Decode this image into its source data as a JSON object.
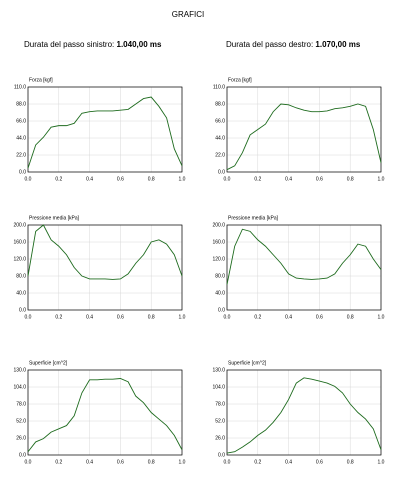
{
  "title": "GRAFICI",
  "durations": [
    {
      "label": "Durata del passo sinistro:",
      "value": "1.040,00 ms"
    },
    {
      "label": "Durata del passo destro:",
      "value": "1.070,00 ms"
    }
  ],
  "chart_data": [
    {
      "type": "line",
      "title": "Forza [kgf]",
      "color": "#1e6b1e",
      "grid": true,
      "x": [
        0,
        0.05,
        0.1,
        0.15,
        0.2,
        0.25,
        0.3,
        0.35,
        0.4,
        0.45,
        0.5,
        0.55,
        0.6,
        0.65,
        0.7,
        0.75,
        0.8,
        0.85,
        0.9,
        0.95,
        1
      ],
      "values": [
        5,
        35,
        45,
        58,
        60,
        60,
        63,
        76,
        78,
        79,
        79,
        79,
        80,
        81,
        88,
        95,
        97,
        85,
        70,
        30,
        8
      ],
      "xlim": [
        0,
        1
      ],
      "xticks": [
        {
          "value": 0,
          "label": "0.0"
        },
        0.2,
        0.4,
        0.6,
        0.8,
        {
          "value": 1,
          "label": "1.0"
        }
      ],
      "ylim": [
        0,
        110
      ],
      "yticks": [
        {
          "value": 0,
          "label": "0.0"
        },
        {
          "value": 22,
          "label": "22.0"
        },
        {
          "value": 44,
          "label": "44.0"
        },
        {
          "value": 66,
          "label": "66.0"
        },
        {
          "value": 88,
          "label": "88.0"
        },
        {
          "value": 110,
          "label": "110.0"
        }
      ]
    },
    {
      "type": "line",
      "title": "Forza [kgf]",
      "color": "#1e6b1e",
      "grid": true,
      "x": [
        0,
        0.05,
        0.1,
        0.15,
        0.2,
        0.25,
        0.3,
        0.35,
        0.4,
        0.45,
        0.5,
        0.55,
        0.6,
        0.65,
        0.7,
        0.75,
        0.8,
        0.85,
        0.9,
        0.95,
        1
      ],
      "values": [
        3,
        8,
        25,
        48,
        55,
        62,
        78,
        88,
        87,
        83,
        80,
        78,
        78,
        79,
        82,
        83,
        85,
        88,
        85,
        55,
        12
      ],
      "xlim": [
        0,
        1
      ],
      "xticks": [
        {
          "value": 0,
          "label": "0.0"
        },
        0.2,
        0.4,
        0.6,
        0.8,
        {
          "value": 1,
          "label": "1.0"
        }
      ],
      "ylim": [
        0,
        110
      ],
      "yticks": [
        {
          "value": 0,
          "label": "0.0"
        },
        {
          "value": 22,
          "label": "22.0"
        },
        {
          "value": 44,
          "label": "44.0"
        },
        {
          "value": 66,
          "label": "66.0"
        },
        {
          "value": 88,
          "label": "88.0"
        },
        {
          "value": 110,
          "label": "110.0"
        }
      ]
    },
    {
      "type": "line",
      "title": "Pressione media [kPa]",
      "color": "#1e6b1e",
      "grid": true,
      "x": [
        0,
        0.05,
        0.1,
        0.15,
        0.2,
        0.25,
        0.3,
        0.35,
        0.4,
        0.45,
        0.5,
        0.55,
        0.6,
        0.65,
        0.7,
        0.75,
        0.8,
        0.85,
        0.9,
        0.95,
        1
      ],
      "values": [
        80,
        185,
        200,
        165,
        150,
        130,
        100,
        80,
        73,
        73,
        73,
        72,
        73,
        85,
        110,
        130,
        160,
        165,
        155,
        130,
        80
      ],
      "xlim": [
        0,
        1
      ],
      "xticks": [
        {
          "value": 0,
          "label": "0.0"
        },
        0.2,
        0.4,
        0.6,
        0.8,
        {
          "value": 1,
          "label": "1.0"
        }
      ],
      "ylim": [
        0,
        200
      ],
      "yticks": [
        {
          "value": 0,
          "label": "0.0"
        },
        {
          "value": 40,
          "label": "40.0"
        },
        {
          "value": 80,
          "label": "80.0"
        },
        {
          "value": 120,
          "label": "120.0"
        },
        {
          "value": 160,
          "label": "160.0"
        },
        {
          "value": 200,
          "label": "200.0"
        }
      ]
    },
    {
      "type": "line",
      "title": "Pressione media [kPa]",
      "color": "#1e6b1e",
      "grid": true,
      "x": [
        0,
        0.05,
        0.1,
        0.15,
        0.2,
        0.25,
        0.3,
        0.35,
        0.4,
        0.45,
        0.5,
        0.55,
        0.6,
        0.65,
        0.7,
        0.75,
        0.8,
        0.85,
        0.9,
        0.95,
        1
      ],
      "values": [
        60,
        150,
        190,
        185,
        165,
        150,
        130,
        110,
        85,
        75,
        73,
        72,
        73,
        75,
        85,
        110,
        130,
        155,
        150,
        120,
        95
      ],
      "xlim": [
        0,
        1
      ],
      "xticks": [
        {
          "value": 0,
          "label": "0.0"
        },
        0.2,
        0.4,
        0.6,
        0.8,
        {
          "value": 1,
          "label": "1.0"
        }
      ],
      "ylim": [
        0,
        200
      ],
      "yticks": [
        {
          "value": 0,
          "label": "0.0"
        },
        {
          "value": 40,
          "label": "40.0"
        },
        {
          "value": 80,
          "label": "80.0"
        },
        {
          "value": 120,
          "label": "120.0"
        },
        {
          "value": 160,
          "label": "160.0"
        },
        {
          "value": 200,
          "label": "200.0"
        }
      ]
    },
    {
      "type": "line",
      "title": "Superficie [cm^2]",
      "color": "#1e6b1e",
      "grid": true,
      "x": [
        0,
        0.05,
        0.1,
        0.15,
        0.2,
        0.25,
        0.3,
        0.35,
        0.4,
        0.45,
        0.5,
        0.55,
        0.6,
        0.65,
        0.7,
        0.75,
        0.8,
        0.85,
        0.9,
        0.95,
        1
      ],
      "values": [
        5,
        20,
        25,
        35,
        40,
        45,
        60,
        95,
        115,
        115,
        116,
        116,
        117,
        112,
        90,
        80,
        65,
        55,
        45,
        30,
        8
      ],
      "xlim": [
        0,
        1
      ],
      "xticks": [
        {
          "value": 0,
          "label": "0.0"
        },
        0.2,
        0.4,
        0.6,
        0.8,
        {
          "value": 1,
          "label": "1.0"
        }
      ],
      "ylim": [
        0,
        130
      ],
      "yticks": [
        {
          "value": 0,
          "label": "0.0"
        },
        {
          "value": 26,
          "label": "26.0"
        },
        {
          "value": 52,
          "label": "52.0"
        },
        {
          "value": 78,
          "label": "78.0"
        },
        {
          "value": 104,
          "label": "104.0"
        },
        {
          "value": 130,
          "label": "130.0"
        }
      ]
    },
    {
      "type": "line",
      "title": "Superficie [cm^2]",
      "color": "#1e6b1e",
      "grid": true,
      "x": [
        0,
        0.05,
        0.1,
        0.15,
        0.2,
        0.25,
        0.3,
        0.35,
        0.4,
        0.45,
        0.5,
        0.55,
        0.6,
        0.65,
        0.7,
        0.75,
        0.8,
        0.85,
        0.9,
        0.95,
        1
      ],
      "values": [
        3,
        5,
        12,
        20,
        30,
        38,
        50,
        65,
        85,
        110,
        118,
        116,
        113,
        110,
        105,
        95,
        78,
        65,
        55,
        40,
        8
      ],
      "xlim": [
        0,
        1
      ],
      "xticks": [
        {
          "value": 0,
          "label": "0.0"
        },
        0.2,
        0.4,
        0.6,
        0.8,
        {
          "value": 1,
          "label": "1.0"
        }
      ],
      "ylim": [
        0,
        130
      ],
      "yticks": [
        {
          "value": 0,
          "label": "0.0"
        },
        {
          "value": 26,
          "label": "26.0"
        },
        {
          "value": 52,
          "label": "52.0"
        },
        {
          "value": 78,
          "label": "78.0"
        },
        {
          "value": 104,
          "label": "104.0"
        },
        {
          "value": 130,
          "label": "130.0"
        }
      ]
    }
  ]
}
